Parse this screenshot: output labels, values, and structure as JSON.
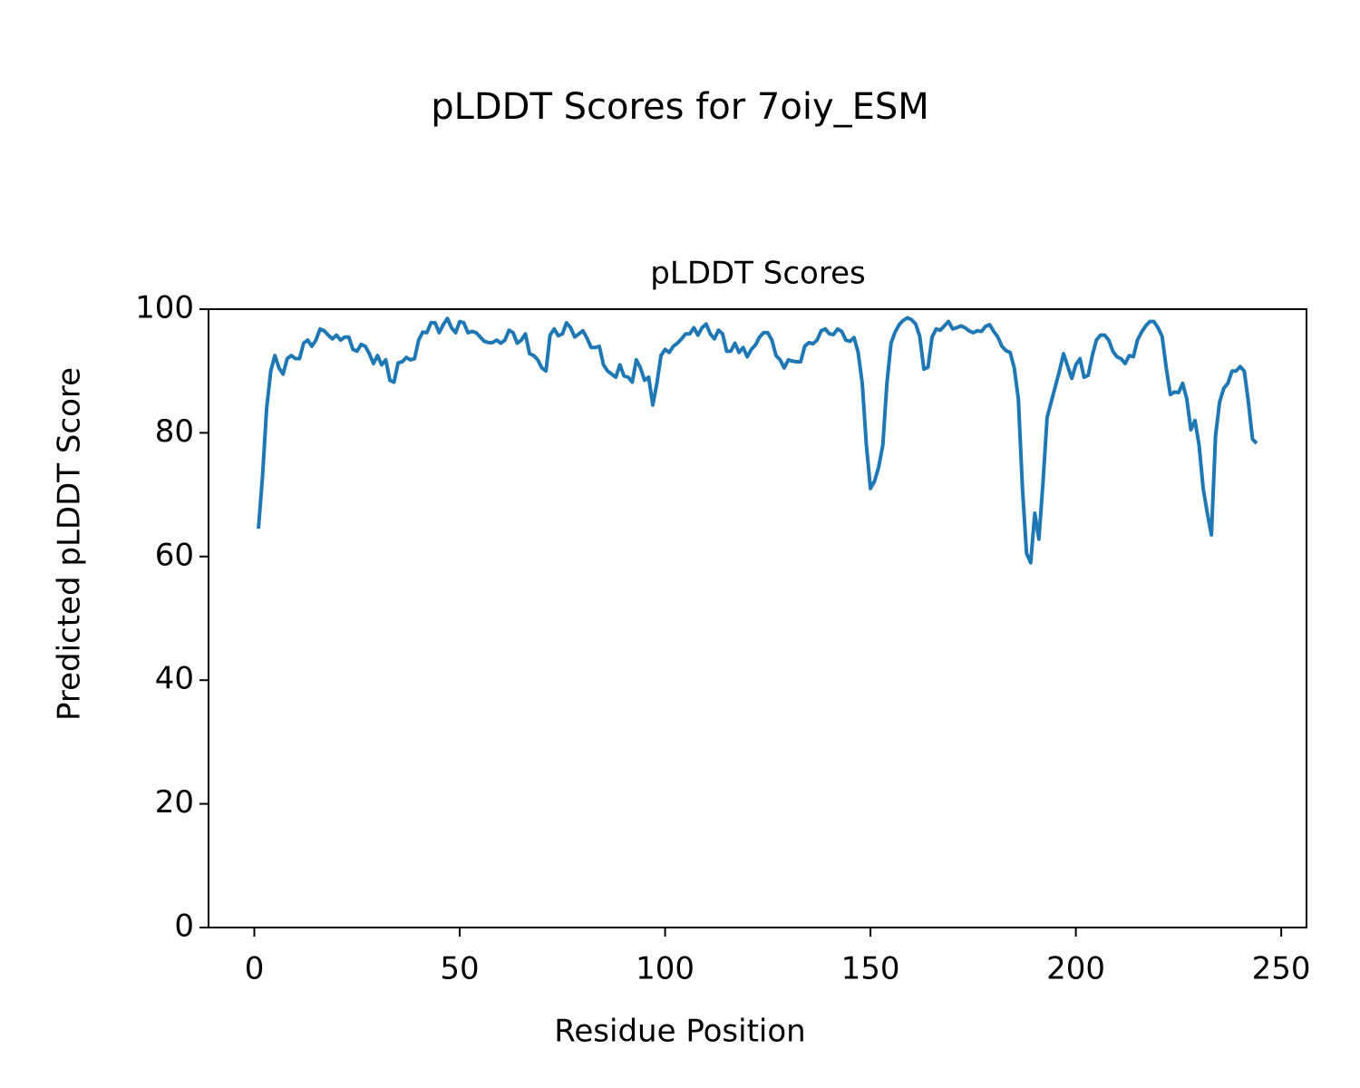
{
  "chart_data": {
    "type": "line",
    "title": "pLDDT Scores for 7oiy_ESM",
    "subtitle": "pLDDT Scores",
    "x_label": "Residue Position",
    "y_label": "Predicted pLDDT Score",
    "xlim": [
      -11.15,
      256.15
    ],
    "ylim": [
      0,
      100
    ],
    "xticks": [
      0,
      50,
      100,
      150,
      200,
      250
    ],
    "yticks": [
      0,
      20,
      40,
      60,
      80,
      100
    ],
    "grid": false,
    "x": [
      1,
      2,
      3,
      4,
      5,
      6,
      7,
      8,
      9,
      10,
      11,
      12,
      13,
      14,
      15,
      16,
      17,
      18,
      19,
      20,
      21,
      22,
      23,
      24,
      25,
      26,
      27,
      28,
      29,
      30,
      31,
      32,
      33,
      34,
      35,
      36,
      37,
      38,
      39,
      40,
      41,
      42,
      43,
      44,
      45,
      46,
      47,
      48,
      49,
      50,
      51,
      52,
      53,
      54,
      55,
      56,
      57,
      58,
      59,
      60,
      61,
      62,
      63,
      64,
      65,
      66,
      67,
      68,
      69,
      70,
      71,
      72,
      73,
      74,
      75,
      76,
      77,
      78,
      79,
      80,
      81,
      82,
      83,
      84,
      85,
      86,
      87,
      88,
      89,
      90,
      91,
      92,
      93,
      94,
      95,
      96,
      97,
      98,
      99,
      100,
      101,
      102,
      103,
      104,
      105,
      106,
      107,
      108,
      109,
      110,
      111,
      112,
      113,
      114,
      115,
      116,
      117,
      118,
      119,
      120,
      121,
      122,
      123,
      124,
      125,
      126,
      127,
      128,
      129,
      130,
      131,
      132,
      133,
      134,
      135,
      136,
      137,
      138,
      139,
      140,
      141,
      142,
      143,
      144,
      145,
      146,
      147,
      148,
      149,
      150,
      151,
      152,
      153,
      154,
      155,
      156,
      157,
      158,
      159,
      160,
      161,
      162,
      163,
      164,
      165,
      166,
      167,
      168,
      169,
      170,
      171,
      172,
      173,
      174,
      175,
      176,
      177,
      178,
      179,
      180,
      181,
      182,
      183,
      184,
      185,
      186,
      187,
      188,
      189,
      190,
      191,
      192,
      193,
      194,
      195,
      196,
      197,
      198,
      199,
      200,
      201,
      202,
      203,
      204,
      205,
      206,
      207,
      208,
      209,
      210,
      211,
      212,
      213,
      214,
      215,
      216,
      217,
      218,
      219,
      220,
      221,
      222,
      223,
      224,
      225,
      226,
      227,
      228,
      229,
      230,
      231,
      232,
      233,
      234,
      235,
      236,
      237,
      238,
      239,
      240,
      241,
      242,
      243,
      244
    ],
    "series": [
      {
        "color": "#1f77b4",
        "values": [
          64.5,
          73,
          84,
          90,
          92.5,
          90.5,
          89.5,
          92,
          92.5,
          92,
          92,
          94.5,
          95,
          94,
          95,
          96.8,
          96.5,
          95.8,
          95.2,
          95.8,
          95,
          95.5,
          95.5,
          93.5,
          93.2,
          94.3,
          94,
          92.8,
          91.2,
          92.5,
          91,
          91.8,
          88.5,
          88.2,
          91.3,
          91.5,
          92.2,
          91.8,
          92,
          95,
          96.3,
          96.2,
          97.8,
          97.8,
          96.2,
          97.5,
          98.5,
          97,
          96.2,
          98,
          97.8,
          96.2,
          96.4,
          96.2,
          95.5,
          94.8,
          94.6,
          94.6,
          95,
          94.5,
          95,
          96.6,
          96.2,
          94.5,
          95,
          96,
          92.8,
          92.5,
          91.8,
          90.5,
          90,
          95.8,
          96.8,
          95.7,
          96,
          97.8,
          97,
          95.5,
          96,
          96.5,
          95.3,
          93.8,
          93.8,
          94,
          91,
          90,
          89.5,
          89,
          91,
          89.2,
          89,
          88.2,
          91.8,
          90.5,
          88.5,
          89,
          84.5,
          88,
          92.5,
          93.5,
          93,
          94,
          94.5,
          95.2,
          96,
          96,
          97,
          95.8,
          97,
          97.6,
          96,
          95.2,
          96.6,
          96,
          93.2,
          93.2,
          94.5,
          93,
          93.8,
          92.3,
          93.5,
          94.2,
          95.5,
          96.2,
          96.2,
          95,
          92.5,
          91.8,
          90.5,
          91.8,
          91.6,
          91.5,
          91.5,
          94,
          94.6,
          94.4,
          95,
          96.5,
          96.8,
          96,
          95.9,
          96.8,
          96.4,
          95,
          94.8,
          95.4,
          93,
          88,
          78,
          71,
          72.2,
          74.5,
          78,
          88,
          94.5,
          96.3,
          97.5,
          98.2,
          98.6,
          98.3,
          97.6,
          95.6,
          90.3,
          90.6,
          95.5,
          96.8,
          96.6,
          97.3,
          98,
          96.8,
          97,
          97.3,
          97,
          96.5,
          96.2,
          96.5,
          96.4,
          97.2,
          97.5,
          96.4,
          95.5,
          94,
          93.3,
          93,
          90.5,
          85.5,
          71,
          60.5,
          59,
          67,
          62.8,
          72,
          82.5,
          85,
          87.5,
          90,
          92.8,
          90.8,
          88.8,
          91,
          92,
          89,
          89.3,
          92.5,
          95,
          95.8,
          95.8,
          95,
          93.2,
          92.3,
          92,
          91.2,
          92.5,
          92.3,
          95,
          96.3,
          97.3,
          98,
          98,
          97,
          95.6,
          90.5,
          86.2,
          86.6,
          86.5,
          88,
          85.5,
          80.5,
          82,
          78,
          71,
          67,
          63.5,
          79.5,
          85,
          87.2,
          88,
          90,
          90,
          90.7,
          90,
          85,
          79,
          78.3
        ]
      }
    ]
  }
}
